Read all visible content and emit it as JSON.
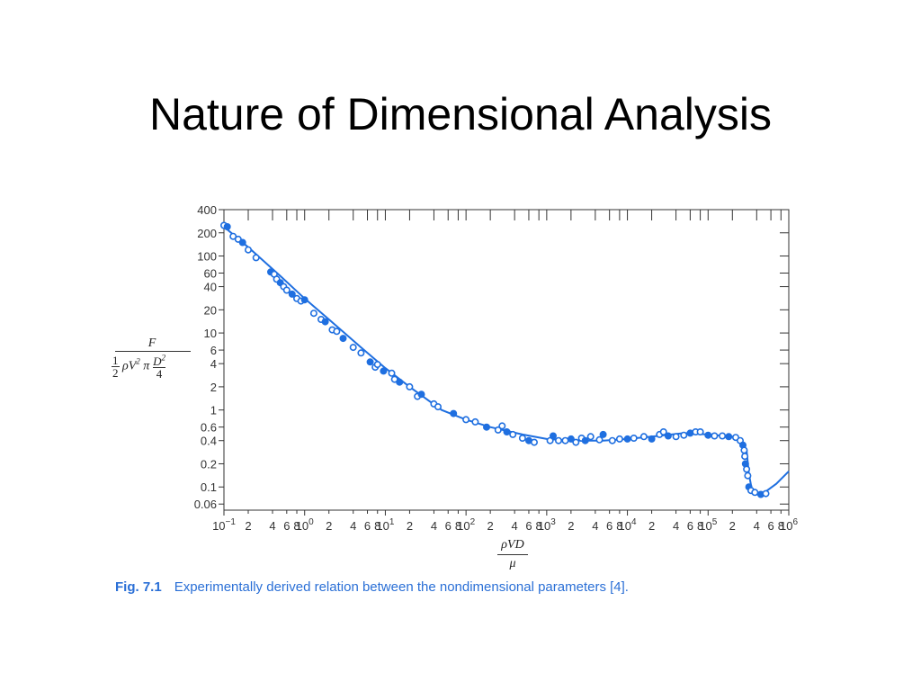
{
  "slide": {
    "title": "Nature of Dimensional Analysis"
  },
  "axis_labels": {
    "y_numerator": "F",
    "y_denominator_parts": [
      "1",
      "2",
      "ρV",
      "2",
      " π ",
      "D",
      "2",
      "4"
    ],
    "x_numerator": "ρVD",
    "x_denominator": "μ"
  },
  "caption": {
    "figure": "Fig. 7.1",
    "text": "Experimentally derived relation between the nondimensional parameters [4]."
  },
  "colors": {
    "data": "#1f6fe0",
    "axis": "#333333",
    "caption": "#2a6fd6"
  },
  "chart_data": {
    "type": "scatter",
    "x_scale": "log",
    "y_scale": "log",
    "xlim": [
      0.1,
      1000000
    ],
    "ylim": [
      0.05,
      400
    ],
    "y_tick_labels": [
      {
        "value": 400,
        "label": "400"
      },
      {
        "value": 200,
        "label": "200"
      },
      {
        "value": 100,
        "label": "100"
      },
      {
        "value": 60,
        "label": "60"
      },
      {
        "value": 40,
        "label": "40"
      },
      {
        "value": 20,
        "label": "20"
      },
      {
        "value": 10,
        "label": "10"
      },
      {
        "value": 6,
        "label": "6"
      },
      {
        "value": 4,
        "label": "4"
      },
      {
        "value": 2,
        "label": "2"
      },
      {
        "value": 1,
        "label": "1"
      },
      {
        "value": 0.6,
        "label": "0.6"
      },
      {
        "value": 0.4,
        "label": "0.4"
      },
      {
        "value": 0.2,
        "label": "0.2"
      },
      {
        "value": 0.1,
        "label": "0.1"
      },
      {
        "value": 0.06,
        "label": "0.06"
      }
    ],
    "x_decades": [
      {
        "value": 0.1,
        "base": "10",
        "exp": "−1"
      },
      {
        "value": 1,
        "base": "10",
        "exp": "0"
      },
      {
        "value": 10,
        "base": "10",
        "exp": "1"
      },
      {
        "value": 100,
        "base": "10",
        "exp": "2"
      },
      {
        "value": 1000,
        "base": "10",
        "exp": "3"
      },
      {
        "value": 10000,
        "base": "10",
        "exp": "4"
      },
      {
        "value": 100000,
        "base": "10",
        "exp": "5"
      },
      {
        "value": 1000000,
        "base": "10",
        "exp": "6"
      }
    ],
    "x_minor_labels": [
      "2",
      "4",
      "6",
      "8"
    ],
    "curve": [
      [
        0.1,
        240
      ],
      [
        0.2,
        130
      ],
      [
        0.5,
        55
      ],
      [
        1,
        28
      ],
      [
        2,
        15
      ],
      [
        5,
        6.5
      ],
      [
        10,
        3.5
      ],
      [
        20,
        2.0
      ],
      [
        50,
        1.0
      ],
      [
        100,
        0.75
      ],
      [
        200,
        0.6
      ],
      [
        500,
        0.48
      ],
      [
        1000,
        0.42
      ],
      [
        2000,
        0.4
      ],
      [
        5000,
        0.4
      ],
      [
        10000,
        0.42
      ],
      [
        20000,
        0.45
      ],
      [
        50000,
        0.5
      ],
      [
        100000,
        0.48
      ],
      [
        200000,
        0.45
      ],
      [
        250000,
        0.42
      ],
      [
        300000,
        0.3
      ],
      [
        320000,
        0.15
      ],
      [
        350000,
        0.09
      ],
      [
        400000,
        0.08
      ],
      [
        500000,
        0.085
      ],
      [
        700000,
        0.11
      ],
      [
        1000000,
        0.16
      ]
    ],
    "points": [
      [
        0.1,
        250
      ],
      [
        0.11,
        240
      ],
      [
        0.13,
        180
      ],
      [
        0.15,
        165
      ],
      [
        0.17,
        150
      ],
      [
        0.2,
        120
      ],
      [
        0.25,
        95
      ],
      [
        0.38,
        62
      ],
      [
        0.42,
        58
      ],
      [
        0.45,
        50
      ],
      [
        0.5,
        45
      ],
      [
        0.55,
        40
      ],
      [
        0.6,
        36
      ],
      [
        0.7,
        32
      ],
      [
        0.8,
        28
      ],
      [
        0.9,
        26
      ],
      [
        1.0,
        27
      ],
      [
        1.3,
        18
      ],
      [
        1.6,
        15
      ],
      [
        1.8,
        14
      ],
      [
        2.2,
        11
      ],
      [
        2.5,
        10.5
      ],
      [
        3.0,
        8.5
      ],
      [
        4.0,
        6.5
      ],
      [
        5.0,
        5.5
      ],
      [
        6.5,
        4.2
      ],
      [
        7.5,
        3.6
      ],
      [
        8.0,
        3.9
      ],
      [
        9.5,
        3.2
      ],
      [
        12,
        3.0
      ],
      [
        13,
        2.5
      ],
      [
        15,
        2.3
      ],
      [
        20,
        2.0
      ],
      [
        25,
        1.5
      ],
      [
        28,
        1.6
      ],
      [
        40,
        1.2
      ],
      [
        45,
        1.1
      ],
      [
        70,
        0.9
      ],
      [
        100,
        0.75
      ],
      [
        130,
        0.7
      ],
      [
        180,
        0.6
      ],
      [
        250,
        0.55
      ],
      [
        280,
        0.62
      ],
      [
        320,
        0.52
      ],
      [
        380,
        0.48
      ],
      [
        500,
        0.43
      ],
      [
        600,
        0.4
      ],
      [
        700,
        0.38
      ],
      [
        1100,
        0.4
      ],
      [
        1200,
        0.46
      ],
      [
        1400,
        0.4
      ],
      [
        1700,
        0.4
      ],
      [
        2000,
        0.42
      ],
      [
        2300,
        0.38
      ],
      [
        2700,
        0.43
      ],
      [
        3000,
        0.4
      ],
      [
        3500,
        0.45
      ],
      [
        4500,
        0.41
      ],
      [
        5000,
        0.48
      ],
      [
        6500,
        0.4
      ],
      [
        8000,
        0.42
      ],
      [
        10000,
        0.42
      ],
      [
        12000,
        0.43
      ],
      [
        16000,
        0.45
      ],
      [
        20000,
        0.42
      ],
      [
        25000,
        0.48
      ],
      [
        28000,
        0.52
      ],
      [
        32000,
        0.46
      ],
      [
        40000,
        0.45
      ],
      [
        50000,
        0.47
      ],
      [
        60000,
        0.5
      ],
      [
        70000,
        0.52
      ],
      [
        80000,
        0.52
      ],
      [
        100000,
        0.47
      ],
      [
        120000,
        0.46
      ],
      [
        150000,
        0.46
      ],
      [
        180000,
        0.45
      ],
      [
        220000,
        0.44
      ],
      [
        250000,
        0.4
      ],
      [
        270000,
        0.35
      ],
      [
        280000,
        0.3
      ],
      [
        285000,
        0.25
      ],
      [
        290000,
        0.2
      ],
      [
        300000,
        0.17
      ],
      [
        310000,
        0.14
      ],
      [
        320000,
        0.1
      ],
      [
        340000,
        0.09
      ],
      [
        380000,
        0.085
      ],
      [
        450000,
        0.08
      ],
      [
        520000,
        0.082
      ]
    ]
  }
}
